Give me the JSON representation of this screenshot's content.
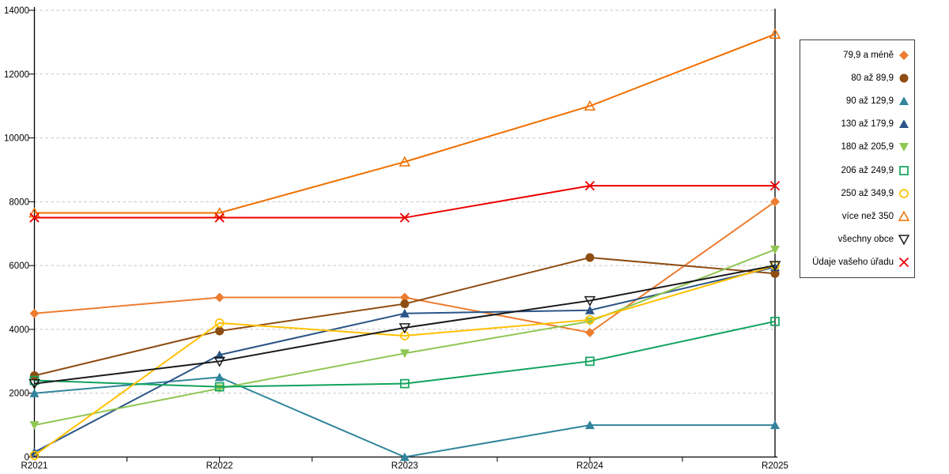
{
  "chart_data": {
    "type": "line",
    "title": "",
    "xlabel": "",
    "ylabel": "",
    "categories": [
      "R2021",
      "R2022",
      "R2023",
      "R2024",
      "R2025"
    ],
    "ylim": [
      0,
      14000
    ],
    "ytick_step": 2000,
    "yticks": [
      "0",
      "2000",
      "4000",
      "6000",
      "8000",
      "10000",
      "12000",
      "14000"
    ],
    "grid": "horizontal-dashed",
    "legend_position": "right",
    "series": [
      {
        "name": "79,9 a méně",
        "marker": "diamond-filled",
        "color": "#ED7D31",
        "values": [
          4500,
          5000,
          5000,
          3900,
          8000
        ]
      },
      {
        "name": "80 až 89,9",
        "marker": "circle-filled",
        "color": "#8E4D13",
        "values": [
          2550,
          3950,
          4800,
          6250,
          5750
        ]
      },
      {
        "name": "90 až 129,9",
        "marker": "triangle-up-filled",
        "color": "#31859C",
        "values": [
          2000,
          2500,
          0,
          1000,
          1000
        ]
      },
      {
        "name": "130 až 179,9",
        "marker": "triangle-up-filled",
        "color": "#2B5587",
        "values": [
          150,
          3200,
          4500,
          4600,
          5950
        ]
      },
      {
        "name": "180 až 205,9",
        "marker": "triangle-down-filled",
        "color": "#8EC653",
        "values": [
          1000,
          2150,
          3250,
          4250,
          6500
        ]
      },
      {
        "name": "206 až 249,9",
        "marker": "square-open",
        "color": "#10A35C",
        "values": [
          2400,
          2200,
          2300,
          3000,
          4250
        ]
      },
      {
        "name": "250 až 349,9",
        "marker": "circle-open",
        "color": "#FFC000",
        "values": [
          50,
          4200,
          3800,
          4300,
          6000
        ]
      },
      {
        "name": "více než 350",
        "marker": "triangle-up-open",
        "color": "#F07000",
        "values": [
          7650,
          7650,
          9250,
          11000,
          13250
        ]
      },
      {
        "name": "všechny obce",
        "marker": "triangle-down-open",
        "color": "#1A1A1A",
        "values": [
          2300,
          3000,
          4050,
          4900,
          6000
        ]
      },
      {
        "name": "Údaje vašeho úřadu",
        "marker": "x",
        "color": "#EC0000",
        "values": [
          7500,
          7500,
          7500,
          8500,
          8500
        ]
      }
    ]
  }
}
